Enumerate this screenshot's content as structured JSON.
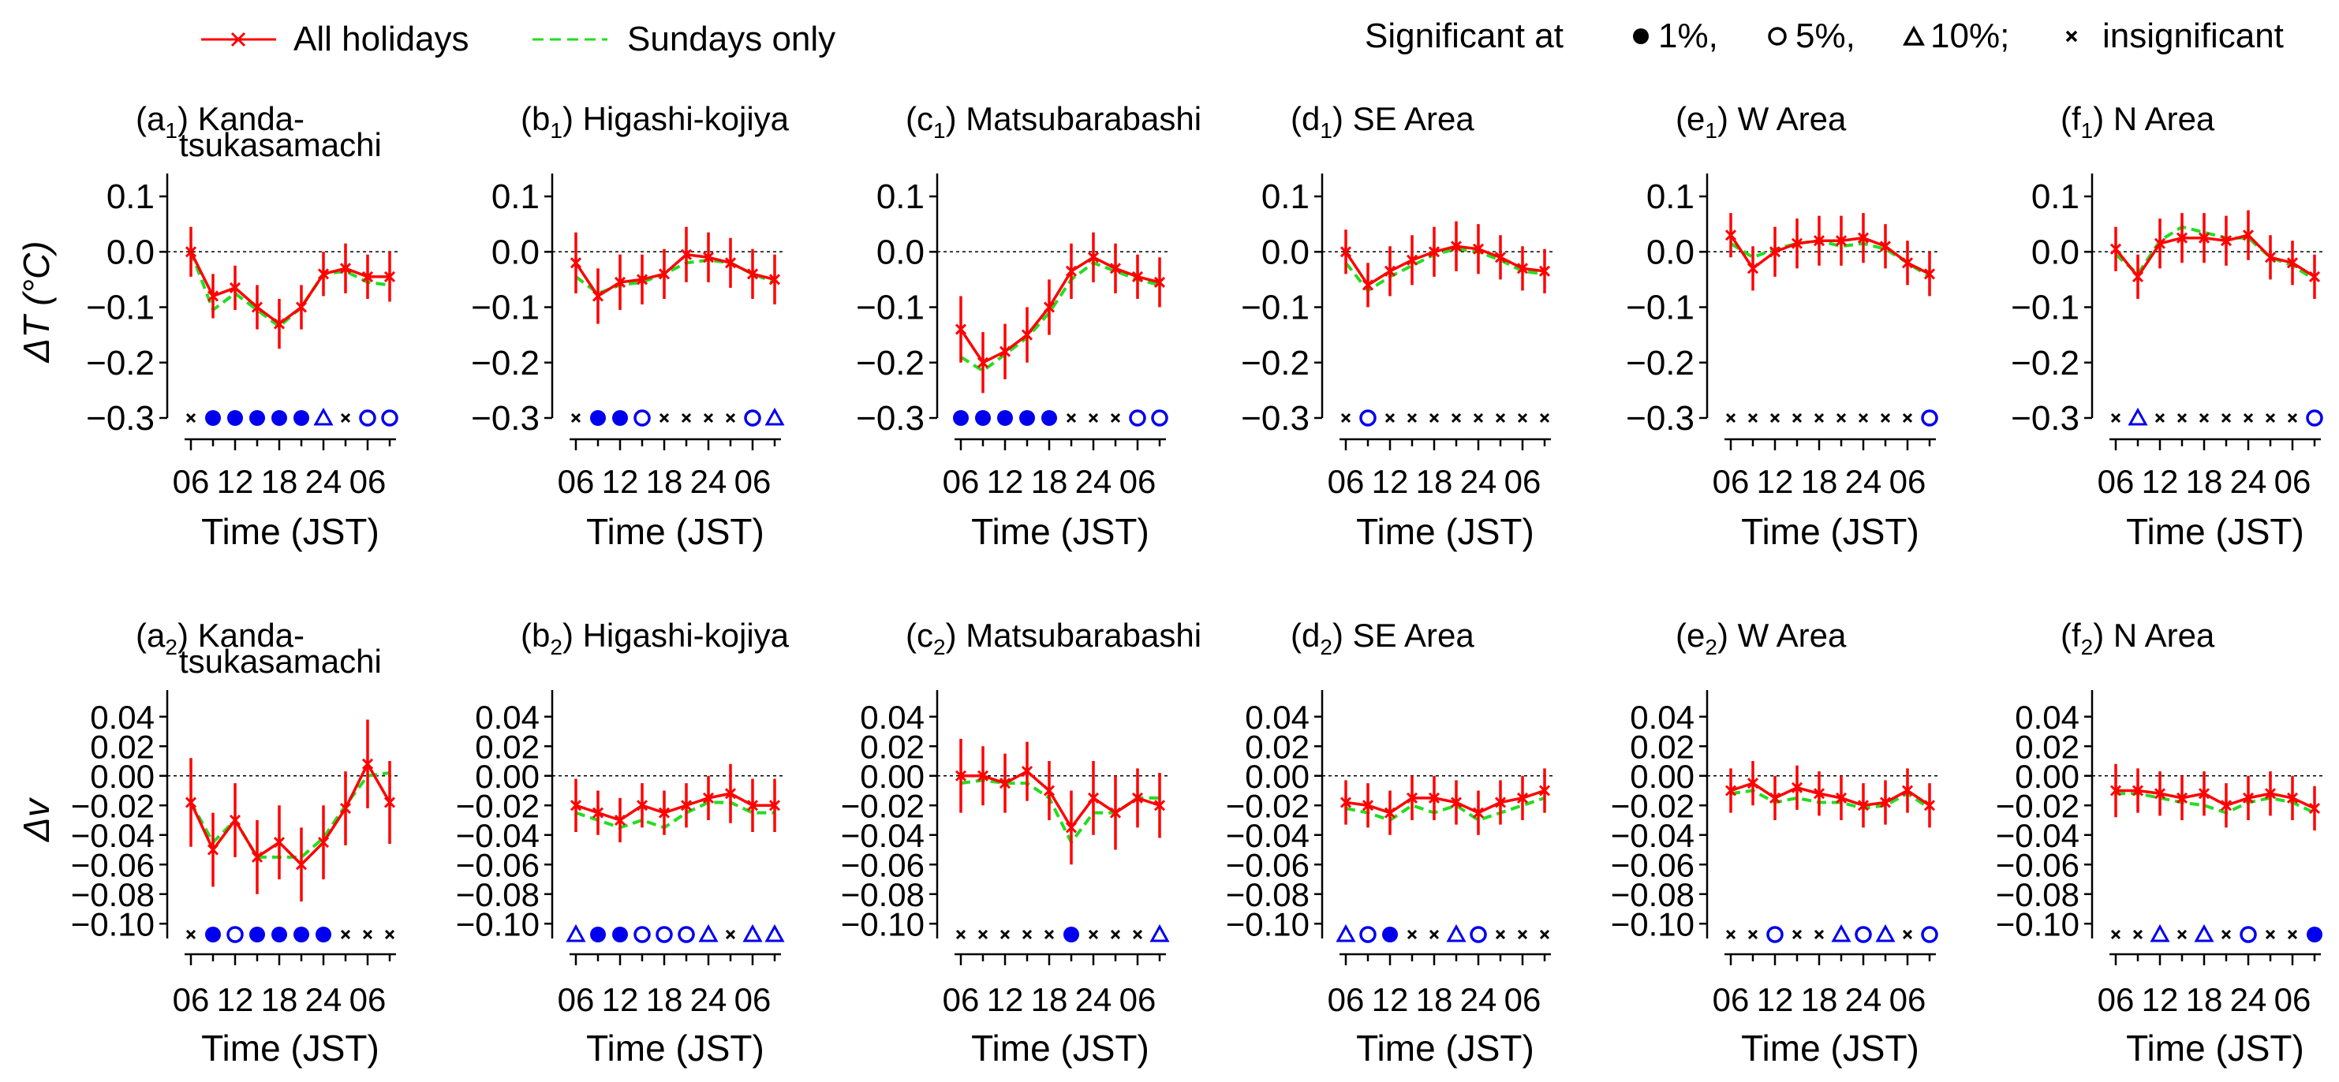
{
  "legend": {
    "all_holidays": "All holidays",
    "sundays_only": "Sundays only",
    "significance_title": "Significant at",
    "levels": [
      "1%,",
      "5%,",
      "10%;",
      "insignificant"
    ]
  },
  "colors": {
    "all_holidays": "#ff0000",
    "sundays_only": "#22dd22",
    "significance": "#0000ee",
    "insignificant": "#000000",
    "axis": "#000000"
  },
  "rows": [
    {
      "ylabel": "ΔT (°C)",
      "ylim": [
        -0.3,
        0.12
      ],
      "ticks": [
        0.1,
        0.0,
        -0.1,
        -0.2,
        -0.3
      ],
      "tick_labels": [
        "0.1",
        "0.0",
        "−0.1",
        "−0.2",
        "−0.3"
      ]
    },
    {
      "ylabel": "Δv",
      "ylim": [
        -0.11,
        0.05
      ],
      "ticks": [
        0.04,
        0.02,
        0.0,
        -0.02,
        -0.04,
        -0.06,
        -0.08,
        -0.1
      ],
      "tick_labels": [
        "0.04",
        "0.02",
        "0.00",
        "−0.02",
        "−0.04",
        "−0.06",
        "−0.08",
        "−0.10"
      ]
    }
  ],
  "xaxis": {
    "label": "Time (JST)",
    "tick_positions": [
      0,
      2,
      4,
      6,
      8
    ],
    "tick_labels": [
      "06",
      "12",
      "18",
      "24",
      "06"
    ],
    "n_points": 10
  },
  "chart_data": [
    {
      "type": "line",
      "row": 0,
      "col": 0,
      "letter": "a",
      "sub": "1",
      "title": "Kanda-",
      "title2": "tsukasamachi",
      "series": [
        {
          "name": "All holidays",
          "values": [
            0.0,
            -0.08,
            -0.065,
            -0.1,
            -0.13,
            -0.1,
            -0.04,
            -0.03,
            -0.045,
            -0.045
          ],
          "errors": [
            0.045,
            0.04,
            0.04,
            0.04,
            0.045,
            0.04,
            0.04,
            0.045,
            0.04,
            0.045
          ]
        },
        {
          "name": "Sundays only",
          "values": [
            0.0,
            -0.105,
            -0.075,
            -0.105,
            -0.135,
            -0.1,
            -0.04,
            -0.035,
            -0.055,
            -0.06
          ]
        }
      ],
      "significance": [
        "x",
        "f",
        "f",
        "f",
        "f",
        "f",
        "t",
        "x",
        "o",
        "o"
      ]
    },
    {
      "type": "line",
      "row": 0,
      "col": 1,
      "letter": "b",
      "sub": "1",
      "title": "Higashi-kojiya",
      "series": [
        {
          "name": "All holidays",
          "values": [
            -0.02,
            -0.08,
            -0.055,
            -0.05,
            -0.04,
            -0.005,
            -0.01,
            -0.02,
            -0.04,
            -0.05
          ],
          "errors": [
            0.055,
            0.05,
            0.05,
            0.045,
            0.045,
            0.05,
            0.045,
            0.045,
            0.045,
            0.045
          ]
        },
        {
          "name": "Sundays only",
          "values": [
            -0.045,
            -0.075,
            -0.06,
            -0.055,
            -0.04,
            -0.02,
            -0.015,
            -0.02,
            -0.04,
            -0.055
          ]
        }
      ],
      "significance": [
        "x",
        "f",
        "f",
        "o",
        "x",
        "x",
        "x",
        "x",
        "o",
        "t"
      ]
    },
    {
      "type": "line",
      "row": 0,
      "col": 2,
      "letter": "c",
      "sub": "1",
      "title": "Matsubarabashi",
      "series": [
        {
          "name": "All holidays",
          "values": [
            -0.14,
            -0.2,
            -0.18,
            -0.15,
            -0.1,
            -0.035,
            -0.01,
            -0.03,
            -0.045,
            -0.055
          ],
          "errors": [
            0.06,
            0.055,
            0.05,
            0.05,
            0.05,
            0.05,
            0.045,
            0.045,
            0.04,
            0.045
          ]
        },
        {
          "name": "Sundays only",
          "values": [
            -0.19,
            -0.215,
            -0.185,
            -0.155,
            -0.11,
            -0.05,
            -0.02,
            -0.035,
            -0.05,
            -0.06
          ]
        }
      ],
      "significance": [
        "f",
        "f",
        "f",
        "f",
        "f",
        "x",
        "x",
        "x",
        "o",
        "o"
      ]
    },
    {
      "type": "line",
      "row": 0,
      "col": 3,
      "letter": "d",
      "sub": "1",
      "title": "SE Area",
      "series": [
        {
          "name": "All holidays",
          "values": [
            0.0,
            -0.06,
            -0.035,
            -0.015,
            0.0,
            0.01,
            0.005,
            -0.01,
            -0.03,
            -0.035
          ],
          "errors": [
            0.04,
            0.04,
            0.045,
            0.045,
            0.045,
            0.045,
            0.045,
            0.04,
            0.04,
            0.04
          ]
        },
        {
          "name": "Sundays only",
          "values": [
            -0.02,
            -0.07,
            -0.045,
            -0.025,
            -0.005,
            0.005,
            0.0,
            -0.015,
            -0.035,
            -0.04
          ]
        }
      ],
      "significance": [
        "x",
        "o",
        "x",
        "x",
        "x",
        "x",
        "x",
        "x",
        "x",
        "x"
      ]
    },
    {
      "type": "line",
      "row": 0,
      "col": 4,
      "letter": "e",
      "sub": "1",
      "title": "W Area",
      "series": [
        {
          "name": "All holidays",
          "values": [
            0.03,
            -0.03,
            0.0,
            0.015,
            0.02,
            0.02,
            0.025,
            0.01,
            -0.02,
            -0.04
          ],
          "errors": [
            0.04,
            0.04,
            0.045,
            0.045,
            0.045,
            0.045,
            0.045,
            0.04,
            0.04,
            0.04
          ]
        },
        {
          "name": "Sundays only",
          "values": [
            0.015,
            -0.01,
            0.005,
            0.015,
            0.02,
            0.01,
            0.015,
            0.005,
            -0.02,
            -0.045
          ]
        }
      ],
      "significance": [
        "x",
        "x",
        "x",
        "x",
        "x",
        "x",
        "x",
        "x",
        "x",
        "o"
      ]
    },
    {
      "type": "line",
      "row": 0,
      "col": 5,
      "letter": "f",
      "sub": "1",
      "title": "N Area",
      "series": [
        {
          "name": "All holidays",
          "values": [
            0.005,
            -0.045,
            0.015,
            0.025,
            0.025,
            0.02,
            0.03,
            -0.01,
            -0.02,
            -0.045
          ],
          "errors": [
            0.04,
            0.04,
            0.045,
            0.045,
            0.045,
            0.045,
            0.045,
            0.04,
            0.04,
            0.04
          ]
        },
        {
          "name": "Sundays only",
          "values": [
            -0.005,
            -0.04,
            0.02,
            0.045,
            0.035,
            0.025,
            0.025,
            -0.01,
            -0.025,
            -0.05
          ]
        }
      ],
      "significance": [
        "x",
        "t",
        "x",
        "x",
        "x",
        "x",
        "x",
        "x",
        "x",
        "o"
      ]
    },
    {
      "type": "line",
      "row": 1,
      "col": 0,
      "letter": "a",
      "sub": "2",
      "title": "Kanda-",
      "title2": "tsukasamachi",
      "series": [
        {
          "name": "All holidays",
          "values": [
            -0.018,
            -0.05,
            -0.03,
            -0.055,
            -0.045,
            -0.06,
            -0.045,
            -0.022,
            0.008,
            -0.018
          ],
          "errors": [
            0.03,
            0.025,
            0.025,
            0.025,
            0.025,
            0.025,
            0.025,
            0.025,
            0.03,
            0.028
          ]
        },
        {
          "name": "Sundays only",
          "values": [
            -0.018,
            -0.045,
            -0.03,
            -0.055,
            -0.055,
            -0.055,
            -0.042,
            -0.02,
            0.0,
            0.002
          ]
        }
      ],
      "significance": [
        "x",
        "f",
        "o",
        "f",
        "f",
        "f",
        "f",
        "x",
        "x",
        "x"
      ]
    },
    {
      "type": "line",
      "row": 1,
      "col": 1,
      "letter": "b",
      "sub": "2",
      "title": "Higashi-kojiya",
      "series": [
        {
          "name": "All holidays",
          "values": [
            -0.02,
            -0.025,
            -0.03,
            -0.02,
            -0.025,
            -0.02,
            -0.015,
            -0.012,
            -0.02,
            -0.02
          ],
          "errors": [
            0.018,
            0.015,
            0.015,
            0.015,
            0.015,
            0.015,
            0.015,
            0.02,
            0.018,
            0.018
          ]
        },
        {
          "name": "Sundays only",
          "values": [
            -0.025,
            -0.03,
            -0.035,
            -0.03,
            -0.035,
            -0.025,
            -0.018,
            -0.018,
            -0.025,
            -0.025
          ]
        }
      ],
      "significance": [
        "t",
        "f",
        "f",
        "o",
        "o",
        "o",
        "t",
        "x",
        "t",
        "t"
      ]
    },
    {
      "type": "line",
      "row": 1,
      "col": 2,
      "letter": "c",
      "sub": "2",
      "title": "Matsubarabashi",
      "series": [
        {
          "name": "All holidays",
          "values": [
            0.0,
            0.0,
            -0.005,
            0.003,
            -0.01,
            -0.035,
            -0.015,
            -0.025,
            -0.015,
            -0.02
          ],
          "errors": [
            0.025,
            0.02,
            0.02,
            0.02,
            0.02,
            0.025,
            0.025,
            0.025,
            0.02,
            0.022
          ]
        },
        {
          "name": "Sundays only",
          "values": [
            -0.005,
            -0.003,
            -0.005,
            -0.005,
            -0.015,
            -0.045,
            -0.025,
            -0.025,
            -0.015,
            -0.015
          ]
        }
      ],
      "significance": [
        "x",
        "x",
        "x",
        "x",
        "x",
        "f",
        "x",
        "x",
        "x",
        "t"
      ]
    },
    {
      "type": "line",
      "row": 1,
      "col": 3,
      "letter": "d",
      "sub": "2",
      "title": "SE Area",
      "series": [
        {
          "name": "All holidays",
          "values": [
            -0.018,
            -0.02,
            -0.025,
            -0.015,
            -0.015,
            -0.018,
            -0.025,
            -0.018,
            -0.015,
            -0.01
          ],
          "errors": [
            0.015,
            0.015,
            0.015,
            0.015,
            0.015,
            0.015,
            0.015,
            0.015,
            0.015,
            0.015
          ]
        },
        {
          "name": "Sundays only",
          "values": [
            -0.022,
            -0.025,
            -0.03,
            -0.02,
            -0.025,
            -0.02,
            -0.03,
            -0.025,
            -0.02,
            -0.015
          ]
        }
      ],
      "significance": [
        "t",
        "o",
        "f",
        "x",
        "x",
        "t",
        "o",
        "x",
        "x",
        "x"
      ]
    },
    {
      "type": "line",
      "row": 1,
      "col": 4,
      "letter": "e",
      "sub": "2",
      "title": "W Area",
      "series": [
        {
          "name": "All holidays",
          "values": [
            -0.01,
            -0.005,
            -0.015,
            -0.008,
            -0.012,
            -0.015,
            -0.02,
            -0.018,
            -0.01,
            -0.02
          ],
          "errors": [
            0.015,
            0.015,
            0.015,
            0.015,
            0.015,
            0.015,
            0.015,
            0.015,
            0.015,
            0.015
          ]
        },
        {
          "name": "Sundays only",
          "values": [
            -0.012,
            -0.01,
            -0.018,
            -0.015,
            -0.018,
            -0.018,
            -0.022,
            -0.02,
            -0.012,
            -0.022
          ]
        }
      ],
      "significance": [
        "x",
        "x",
        "o",
        "x",
        "x",
        "t",
        "o",
        "t",
        "x",
        "o"
      ]
    },
    {
      "type": "line",
      "row": 1,
      "col": 5,
      "letter": "f",
      "sub": "2",
      "title": "N Area",
      "series": [
        {
          "name": "All holidays",
          "values": [
            -0.01,
            -0.01,
            -0.012,
            -0.015,
            -0.012,
            -0.02,
            -0.015,
            -0.012,
            -0.015,
            -0.022
          ],
          "errors": [
            0.018,
            0.015,
            0.015,
            0.015,
            0.015,
            0.015,
            0.015,
            0.015,
            0.015,
            0.015
          ]
        },
        {
          "name": "Sundays only",
          "values": [
            -0.012,
            -0.012,
            -0.015,
            -0.018,
            -0.02,
            -0.025,
            -0.018,
            -0.015,
            -0.018,
            -0.025
          ]
        }
      ],
      "significance": [
        "x",
        "x",
        "t",
        "x",
        "t",
        "x",
        "o",
        "x",
        "x",
        "f"
      ]
    }
  ]
}
